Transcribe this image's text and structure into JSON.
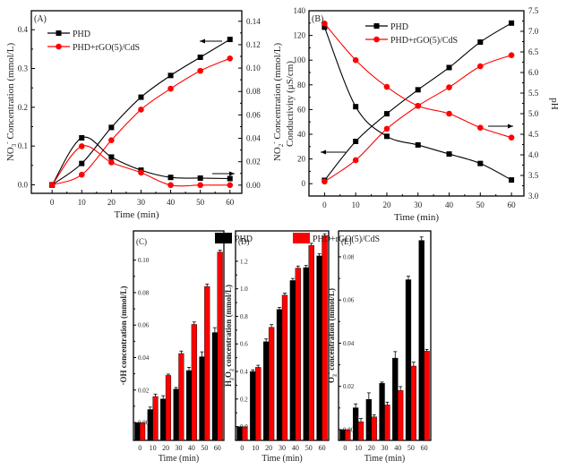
{
  "chart_data": [
    {
      "id": "A",
      "type": "line",
      "panel_label": "(A)",
      "xlabel": "Time (min)",
      "ylabel_left": "NO3- Concentration (mmol/L)",
      "ylabel_left_main": "NO",
      "ylabel_left_sub": "3",
      "ylabel_left_sup": "-",
      "ylabel_left_rest": " Concentration (mmol/L)",
      "ylabel_right": "NO2- Concentration (mmol/L)",
      "ylabel_right_main": "NO",
      "ylabel_right_sub": "2",
      "ylabel_right_sup": "-",
      "ylabel_right_rest": " Concentration (mmol/L)",
      "x": [
        0,
        10,
        20,
        30,
        40,
        50,
        60
      ],
      "xticks": [
        0,
        10,
        20,
        30,
        40,
        50,
        60
      ],
      "xlim": [
        -7,
        64
      ],
      "ylim_left": [
        -0.022,
        0.449
      ],
      "yticks_left": [
        0.0,
        0.1,
        0.2,
        0.3,
        0.4
      ],
      "yticks_left_labels": [
        "0.0",
        "0.1",
        "0.2",
        "0.3",
        "0.4"
      ],
      "ylim_right": [
        -0.007,
        0.149
      ],
      "yticks_right": [
        0.0,
        0.02,
        0.04,
        0.06,
        0.08,
        0.1,
        0.12,
        0.14
      ],
      "yticks_right_labels": [
        "0.00",
        "0.02",
        "0.04",
        "0.06",
        "0.08",
        "0.10",
        "0.12",
        "0.14"
      ],
      "legend": [
        {
          "name": "PHD",
          "color": "#000000",
          "marker": "square"
        },
        {
          "name": "PHD+rGO(5)/CdS",
          "color": "#ff0000",
          "marker": "circle"
        }
      ],
      "legend_position": "top-left",
      "series": [
        {
          "name": "PHD",
          "quantity": "NO3-",
          "axis": "left",
          "color": "#000000",
          "marker": "square",
          "values": [
            0.0,
            0.055,
            0.148,
            0.226,
            0.282,
            0.329,
            0.375
          ]
        },
        {
          "name": "PHD+rGO(5)/CdS",
          "quantity": "NO3-",
          "axis": "left",
          "color": "#ff0000",
          "marker": "circle",
          "values": [
            0.0,
            0.026,
            0.115,
            0.194,
            0.248,
            0.294,
            0.326
          ]
        },
        {
          "name": "PHD",
          "quantity": "NO2-",
          "axis": "right",
          "color": "#000000",
          "marker": "square",
          "values": [
            0.0,
            0.0404,
            0.024,
            0.0128,
            0.0066,
            0.006,
            0.0056
          ]
        },
        {
          "name": "PHD+rGO(5)/CdS",
          "quantity": "NO2-",
          "axis": "right",
          "color": "#ff0000",
          "marker": "circle",
          "values": [
            0.0,
            0.0332,
            0.0194,
            0.0107,
            0.0,
            0.0,
            0.0
          ]
        }
      ],
      "annotations": [
        {
          "type": "arrow",
          "direction": "left",
          "meaning": "rising curves use left axis"
        },
        {
          "type": "arrow",
          "direction": "right",
          "meaning": "hump curves use right axis"
        }
      ]
    },
    {
      "id": "B",
      "type": "line",
      "panel_label": "(B)",
      "xlabel": "Time (min)",
      "ylabel_left": "Conductivity (μS/cm)",
      "ylabel_right": "pH",
      "x": [
        0,
        10,
        20,
        30,
        40,
        50,
        60
      ],
      "xticks": [
        0,
        10,
        20,
        30,
        40,
        50,
        60
      ],
      "xlim": [
        -5,
        64
      ],
      "ylim_left": [
        -10,
        140
      ],
      "yticks_left": [
        0,
        20,
        40,
        60,
        80,
        100,
        120,
        140
      ],
      "yticks_left_labels": [
        "0",
        "20",
        "40",
        "60",
        "80",
        "100",
        "120",
        "140"
      ],
      "ylim_right": [
        3.0,
        7.5
      ],
      "yticks_right": [
        3.0,
        3.5,
        4.0,
        4.5,
        5.0,
        5.5,
        6.0,
        6.5,
        7.0,
        7.5
      ],
      "yticks_right_labels": [
        "3.0",
        "3.5",
        "4.0",
        "4.5",
        "5.0",
        "5.5",
        "6.0",
        "6.5",
        "7.0",
        "7.5"
      ],
      "legend": [
        {
          "name": "PHD",
          "color": "#000000",
          "marker": "square"
        },
        {
          "name": "PHD+rGO(5)/CdS",
          "color": "#ff0000",
          "marker": "circle"
        }
      ],
      "legend_position": "top-center",
      "series": [
        {
          "name": "PHD",
          "quantity": "Conductivity",
          "axis": "left",
          "color": "#000000",
          "marker": "square",
          "values": [
            2.7,
            34.2,
            56.6,
            76.0,
            94.0,
            114.6,
            130.0
          ]
        },
        {
          "name": "PHD+rGO(5)/CdS",
          "quantity": "Conductivity",
          "axis": "left",
          "color": "#ff0000",
          "marker": "circle",
          "values": [
            1.7,
            19.0,
            44.4,
            63.0,
            78.0,
            95.0,
            104.0
          ]
        },
        {
          "name": "PHD",
          "quantity": "pH",
          "axis": "right",
          "color": "#000000",
          "marker": "square",
          "values": [
            7.1,
            5.17,
            4.45,
            4.24,
            4.02,
            3.79,
            3.39
          ]
        },
        {
          "name": "PHD+rGO(5)/CdS",
          "quantity": "pH",
          "axis": "right",
          "color": "#ff0000",
          "marker": "circle",
          "values": [
            7.19,
            6.3,
            5.65,
            5.19,
            5.0,
            4.66,
            4.42
          ]
        }
      ],
      "annotations": [
        {
          "type": "arrow",
          "direction": "left",
          "meaning": "rising curves use left axis"
        },
        {
          "type": "arrow",
          "direction": "right",
          "meaning": "falling curves use right axis"
        }
      ]
    },
    {
      "id": "C",
      "type": "bar",
      "panel_label": "(C)",
      "xlabel": "Time (min)",
      "ylabel": "·OH concentration (mmol/L)",
      "categories": [
        "0",
        "10",
        "20",
        "30",
        "40",
        "50",
        "60"
      ],
      "ylim": [
        -0.011,
        0.118
      ],
      "yticks": [
        0.0,
        0.02,
        0.04,
        0.06,
        0.08,
        0.1
      ],
      "yticks_labels": [
        "0.00",
        "0.02",
        "0.04",
        "0.06",
        "0.08",
        "0.10"
      ],
      "series": [
        {
          "name": "PHD",
          "color": "#000000",
          "values": [
            0.0,
            0.008,
            0.0145,
            0.0206,
            0.032,
            0.0405,
            0.0554
          ],
          "errors": [
            0.0,
            0.0015,
            0.002,
            0.001,
            0.002,
            0.003,
            0.003
          ]
        },
        {
          "name": "PHD+rGO(5)/CdS",
          "color": "#ff0000",
          "values": [
            0.0,
            0.016,
            0.029,
            0.0425,
            0.0604,
            0.0838,
            0.105
          ],
          "errors": [
            0.0,
            0.0015,
            0.0008,
            0.0015,
            0.0015,
            0.0015,
            0.0012
          ]
        }
      ]
    },
    {
      "id": "D",
      "type": "bar",
      "panel_label": "(D)",
      "xlabel": "Time (min)",
      "ylabel": "H2O2 concentration (mmol/L)",
      "ylabel_main": "H",
      "ylabel_sub1": "2",
      "ylabel_mid": "O",
      "ylabel_sub2": "2",
      "ylabel_rest": " concentration (mmol/L)",
      "categories": [
        "0",
        "10",
        "20",
        "30",
        "40",
        "50",
        "60"
      ],
      "ylim": [
        -0.1,
        1.42
      ],
      "yticks": [
        0.0,
        0.2,
        0.4,
        0.6,
        0.8,
        1.0,
        1.2
      ],
      "yticks_labels": [
        "0.0",
        "0.2",
        "0.4",
        "0.6",
        "0.8",
        "1.0",
        "1.2"
      ],
      "series": [
        {
          "name": "PHD",
          "color": "#000000",
          "values": [
            0.0,
            0.4,
            0.616,
            0.85,
            1.06,
            1.154,
            1.239
          ],
          "errors": [
            0.0,
            0.012,
            0.02,
            0.015,
            0.015,
            0.015,
            0.015
          ]
        },
        {
          "name": "PHD+rGO(5)/CdS",
          "color": "#ff0000",
          "values": [
            0.0,
            0.43,
            0.72,
            0.954,
            1.15,
            1.315,
            1.384
          ],
          "errors": [
            0.0,
            0.015,
            0.02,
            0.015,
            0.015,
            0.015,
            0.015
          ]
        }
      ]
    },
    {
      "id": "E",
      "type": "bar",
      "panel_label": "(E)",
      "xlabel": "Time (min)",
      "ylabel": "O2- concentration (mmol/L)",
      "ylabel_main": "O",
      "ylabel_sub": "2",
      "ylabel_sup": "-",
      "ylabel_rest": " concentration (mmol/L)",
      "categories": [
        "0",
        "10",
        "20",
        "30",
        "40",
        "50",
        "60"
      ],
      "ylim": [
        -0.005,
        0.092
      ],
      "yticks": [
        0.0,
        0.02,
        0.04,
        0.06,
        0.08
      ],
      "yticks_labels": [
        "0.00",
        "0.02",
        "0.04",
        "0.06",
        "0.08"
      ],
      "series": [
        {
          "name": "PHD",
          "color": "#000000",
          "values": [
            0.0,
            0.0101,
            0.014,
            0.0214,
            0.0331,
            0.0694,
            0.0876
          ],
          "errors": [
            0.0,
            0.0018,
            0.003,
            0.0006,
            0.003,
            0.0016,
            0.0016
          ]
        },
        {
          "name": "PHD+rGO(5)/CdS",
          "color": "#ff0000",
          "values": [
            0.0,
            0.0036,
            0.0059,
            0.0114,
            0.0181,
            0.0294,
            0.0363
          ],
          "errors": [
            0.0,
            0.0015,
            0.0009,
            0.0013,
            0.0018,
            0.0018,
            0.0008
          ]
        }
      ]
    }
  ],
  "shared_legend": [
    {
      "name": "PHD",
      "color": "#000000"
    },
    {
      "name": "PHD+rGO(5)/CdS",
      "color": "#ff0000"
    }
  ]
}
